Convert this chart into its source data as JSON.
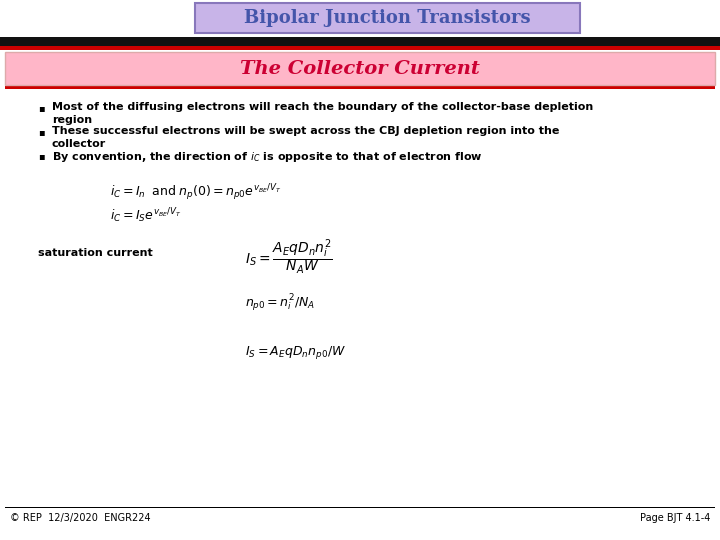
{
  "title": "Bipolar Junction Transistors",
  "subtitle": "The Collector Current",
  "title_box_color": "#c8b4e8",
  "title_box_edge": "#8877bb",
  "subtitle_box_color": "#ffb6c8",
  "subtitle_box_edge": "#ddaaaa",
  "slide_bg": "#ffffff",
  "content_bg": "#ffffff",
  "title_text_color": "#4455aa",
  "subtitle_text_color": "#cc0033",
  "bullet_color": "#000000",
  "footer_left": "© REP  12/3/2020  ENGR224",
  "footer_right": "Page BJT 4.1-4",
  "eq1": "$i_C = I_n \\;\\; \\mathrm{and} \\; n_p(0)= n_{p0}e^{v_{BE}/V_T}$",
  "eq2": "$i_C = I_S e^{v_{BE}/V_T}$",
  "sat_label": "saturation current",
  "eq3": "$I_S = \\dfrac{A_E q D_n n_i^2}{N_A W}$",
  "eq4": "$n_{p0} = n_i^2 / N_A$",
  "eq5": "$I_S = A_E q D_n n_{p0} / W$",
  "bp1_line1": "Most of the diffusing electrons will reach the boundary of the collector-base depletion",
  "bp1_line2": "region",
  "bp2_line1": "These successful electrons will be swept across the CBJ depletion region into the",
  "bp2_line2": "collector",
  "bp3": "By convention, the direction of $i_C$ is opposite to that of electron flow"
}
